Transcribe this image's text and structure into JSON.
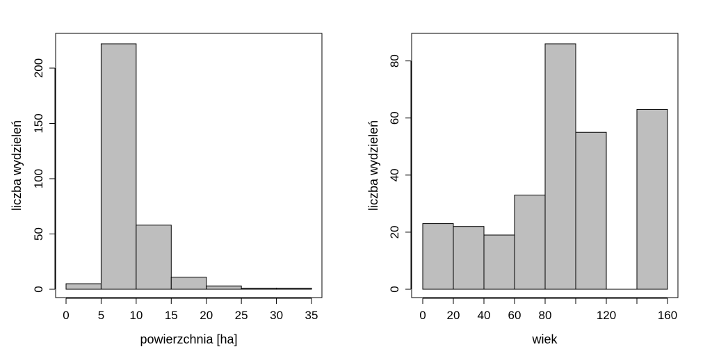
{
  "chart_data": [
    {
      "type": "bar",
      "xlabel": "powierzchnia [ha]",
      "ylabel": "liczba wydzieleń",
      "bins": [
        [
          0,
          5
        ],
        [
          5,
          10
        ],
        [
          10,
          15
        ],
        [
          15,
          20
        ],
        [
          20,
          25
        ],
        [
          25,
          30
        ],
        [
          30,
          35
        ]
      ],
      "values": [
        5,
        222,
        58,
        11,
        3,
        1,
        1
      ],
      "xlim": [
        0,
        35
      ],
      "ylim": [
        0,
        222
      ],
      "xticks": [
        0,
        5,
        10,
        15,
        20,
        25,
        30,
        35
      ],
      "xtick_labels": [
        "0",
        "5",
        "10",
        "15",
        "20",
        "25",
        "30",
        "35"
      ],
      "yticks": [
        0,
        50,
        100,
        150,
        200
      ],
      "ytick_labels": [
        "0",
        "50",
        "100",
        "150",
        "200"
      ],
      "bar_color": "#bebebe",
      "grid": false
    },
    {
      "type": "bar",
      "xlabel": "wiek",
      "ylabel": "liczba wydzieleń",
      "bins": [
        [
          0,
          20
        ],
        [
          20,
          40
        ],
        [
          40,
          60
        ],
        [
          60,
          80
        ],
        [
          80,
          100
        ],
        [
          100,
          120
        ],
        [
          120,
          140
        ],
        [
          140,
          160
        ]
      ],
      "values": [
        23,
        22,
        19,
        33,
        86,
        55,
        0,
        63
      ],
      "xlim": [
        0,
        160
      ],
      "ylim": [
        0,
        86
      ],
      "xticks": [
        0,
        20,
        40,
        60,
        80,
        100,
        120,
        140,
        160
      ],
      "xtick_labels": [
        "0",
        "20",
        "40",
        "60",
        "80",
        "",
        "120",
        "",
        "160"
      ],
      "yticks": [
        0,
        20,
        40,
        60,
        80
      ],
      "ytick_labels": [
        "0",
        "20",
        "40",
        "60",
        "80"
      ],
      "bar_color": "#bebebe",
      "grid": false
    }
  ]
}
